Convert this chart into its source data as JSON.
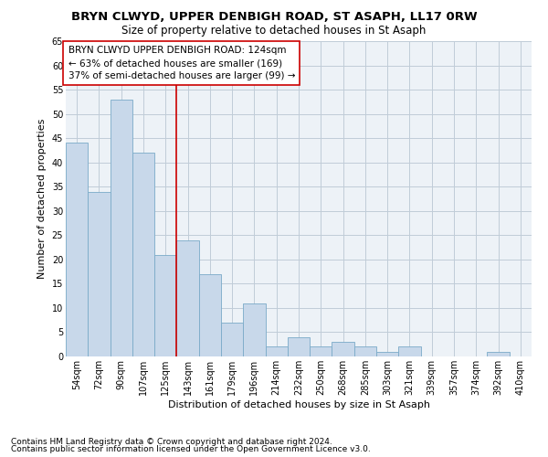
{
  "title1": "BRYN CLWYD, UPPER DENBIGH ROAD, ST ASAPH, LL17 0RW",
  "title2": "Size of property relative to detached houses in St Asaph",
  "xlabel": "Distribution of detached houses by size in St Asaph",
  "ylabel": "Number of detached properties",
  "footer1": "Contains HM Land Registry data © Crown copyright and database right 2024.",
  "footer2": "Contains public sector information licensed under the Open Government Licence v3.0.",
  "annotation_line1": "BRYN CLWYD UPPER DENBIGH ROAD: 124sqm",
  "annotation_line2": "← 63% of detached houses are smaller (169)",
  "annotation_line3": "37% of semi-detached houses are larger (99) →",
  "categories": [
    "54sqm",
    "72sqm",
    "90sqm",
    "107sqm",
    "125sqm",
    "143sqm",
    "161sqm",
    "179sqm",
    "196sqm",
    "214sqm",
    "232sqm",
    "250sqm",
    "268sqm",
    "285sqm",
    "303sqm",
    "321sqm",
    "339sqm",
    "357sqm",
    "374sqm",
    "392sqm",
    "410sqm"
  ],
  "values": [
    44,
    34,
    53,
    42,
    21,
    24,
    17,
    7,
    11,
    2,
    4,
    2,
    3,
    2,
    1,
    2,
    0,
    0,
    0,
    1,
    0
  ],
  "bar_color": "#c8d8ea",
  "bar_edge_color": "#7aaac8",
  "vline_x": 4.5,
  "vline_color": "#cc0000",
  "ylim": [
    0,
    65
  ],
  "yticks": [
    0,
    5,
    10,
    15,
    20,
    25,
    30,
    35,
    40,
    45,
    50,
    55,
    60,
    65
  ],
  "grid_color": "#c0ccd8",
  "bg_color": "#edf2f7",
  "box_color": "#cc0000",
  "title1_fontsize": 9.5,
  "title2_fontsize": 8.5,
  "xlabel_fontsize": 8,
  "ylabel_fontsize": 8,
  "annot_fontsize": 7.5,
  "tick_fontsize": 7,
  "footer_fontsize": 6.5
}
